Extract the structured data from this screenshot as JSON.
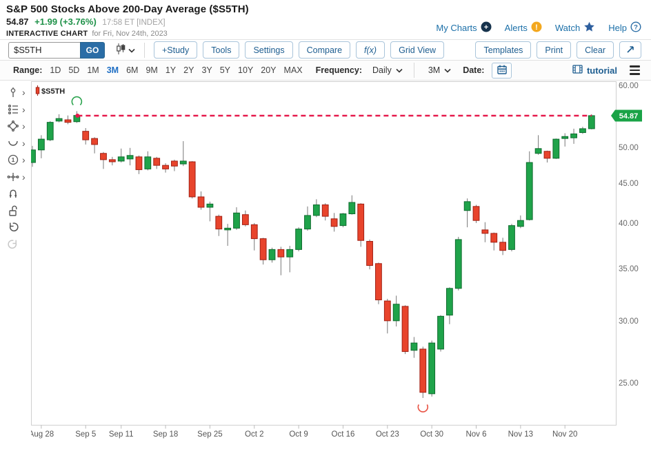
{
  "header": {
    "title": "S&P 500 Stocks Above 200-Day Average ($S5TH)",
    "price": "54.87",
    "change": "+1.99 (+3.76%)",
    "time": "17:58 ET [INDEX]",
    "chart_label": "INTERACTIVE CHART",
    "chart_date": "for Fri, Nov 24th, 2023",
    "links": [
      {
        "label": "My Charts",
        "icon": "plus-circle"
      },
      {
        "label": "Alerts",
        "icon": "alert-circle"
      },
      {
        "label": "Watch",
        "icon": "star"
      },
      {
        "label": "Help",
        "icon": "question-circle"
      }
    ]
  },
  "icons": {
    "plus": "+",
    "exclamation": "!",
    "question": "?",
    "one": "1"
  },
  "toolbar": {
    "symbol_value": "$S5TH",
    "go_label": "GO",
    "buttons_left": [
      "+Study",
      "Tools",
      "Settings",
      "Compare",
      "f(x)",
      "Grid View"
    ],
    "buttons_right": [
      "Templates",
      "Print",
      "Clear"
    ]
  },
  "range_bar": {
    "range_label": "Range:",
    "ranges": [
      "1D",
      "5D",
      "1M",
      "3M",
      "6M",
      "9M",
      "1Y",
      "2Y",
      "3Y",
      "5Y",
      "10Y",
      "20Y",
      "MAX"
    ],
    "selected_range": "3M",
    "frequency_label": "Frequency:",
    "frequency_value": "Daily",
    "period_value": "3M",
    "date_label": "Date:",
    "tutorial_label": "tutorial"
  },
  "sidebar_tools": [
    "annotation-tool",
    "trendlines-tool",
    "shapes-tool",
    "arc-tool",
    "text-note-tool",
    "measure-tool",
    "magnet-tool",
    "lock-tool",
    "undo-button",
    "redo-button"
  ],
  "colors": {
    "up": "#1fa34a",
    "up_border": "#0f6b2e",
    "down": "#e8442c",
    "down_border": "#a02014",
    "wick": "#777777",
    "hline": "#e6194b",
    "badge": "#1aa347",
    "annotation_green": "#2ba34e",
    "annotation_red": "#e95546"
  },
  "chart_data": {
    "type": "candlestick",
    "symbol": "$S5TH",
    "scale": "log",
    "grid": false,
    "ylim": [
      23,
      60
    ],
    "y_ticks": [
      60,
      50,
      45,
      40,
      35,
      30,
      25
    ],
    "y_tick_labels": [
      "60.00",
      "50.00",
      "45.00",
      "40.00",
      "35.00",
      "30.00",
      "25.00"
    ],
    "last_price": 54.87,
    "last_price_label": "54.87",
    "x_labels": [
      {
        "label": "Aug 28",
        "i": 1
      },
      {
        "label": "Sep 5",
        "i": 6
      },
      {
        "label": "Sep 11",
        "i": 10
      },
      {
        "label": "Sep 18",
        "i": 15
      },
      {
        "label": "Sep 25",
        "i": 20
      },
      {
        "label": "Oct 2",
        "i": 25
      },
      {
        "label": "Oct 9",
        "i": 30
      },
      {
        "label": "Oct 16",
        "i": 35
      },
      {
        "label": "Oct 23",
        "i": 40
      },
      {
        "label": "Oct 30",
        "i": 45
      },
      {
        "label": "Nov 6",
        "i": 50
      },
      {
        "label": "Nov 13",
        "i": 55
      },
      {
        "label": "Nov 20",
        "i": 60
      }
    ],
    "candles_ohlc": [
      [
        47.8,
        50.2,
        47.2,
        49.6
      ],
      [
        49.6,
        51.8,
        48.4,
        51.2
      ],
      [
        51.1,
        54.0,
        50.9,
        53.8
      ],
      [
        54.0,
        55.1,
        53.8,
        54.4
      ],
      [
        54.2,
        54.9,
        53.5,
        53.8
      ],
      [
        53.9,
        55.6,
        53.7,
        54.9
      ],
      [
        52.4,
        52.9,
        50.4,
        51.1
      ],
      [
        51.3,
        51.5,
        49.1,
        50.4
      ],
      [
        49.1,
        49.3,
        46.9,
        48.2
      ],
      [
        48.2,
        48.6,
        47.4,
        47.9
      ],
      [
        48.0,
        49.8,
        47.8,
        48.6
      ],
      [
        48.3,
        49.9,
        47.4,
        48.8
      ],
      [
        48.6,
        48.8,
        46.2,
        46.8
      ],
      [
        46.9,
        49.4,
        46.7,
        48.6
      ],
      [
        48.4,
        48.6,
        46.9,
        47.4
      ],
      [
        47.4,
        47.7,
        46.4,
        46.9
      ],
      [
        48.0,
        48.2,
        46.6,
        47.3
      ],
      [
        47.6,
        50.9,
        47.3,
        48.0
      ],
      [
        47.9,
        48.0,
        43.0,
        43.2
      ],
      [
        43.2,
        43.9,
        41.6,
        41.9
      ],
      [
        41.9,
        42.6,
        40.2,
        42.3
      ],
      [
        40.8,
        41.0,
        38.5,
        39.3
      ],
      [
        39.2,
        39.9,
        37.4,
        39.4
      ],
      [
        39.4,
        41.9,
        39.2,
        41.2
      ],
      [
        41.0,
        41.5,
        39.6,
        39.8
      ],
      [
        39.8,
        40.0,
        36.9,
        38.2
      ],
      [
        38.2,
        38.3,
        35.4,
        35.9
      ],
      [
        35.9,
        37.2,
        35.6,
        37.0
      ],
      [
        37.0,
        37.3,
        34.3,
        36.2
      ],
      [
        36.2,
        37.4,
        34.6,
        37.0
      ],
      [
        37.0,
        39.5,
        36.8,
        39.3
      ],
      [
        39.3,
        42.0,
        39.1,
        40.9
      ],
      [
        40.9,
        42.9,
        40.7,
        42.2
      ],
      [
        42.2,
        42.4,
        40.3,
        40.8
      ],
      [
        40.5,
        41.2,
        39.0,
        39.6
      ],
      [
        39.7,
        41.2,
        39.5,
        41.1
      ],
      [
        41.1,
        43.4,
        41.0,
        42.5
      ],
      [
        42.3,
        42.4,
        37.3,
        38.0
      ],
      [
        37.9,
        38.1,
        34.9,
        35.3
      ],
      [
        35.5,
        35.6,
        31.5,
        31.9
      ],
      [
        31.8,
        32.0,
        28.9,
        30.0
      ],
      [
        30.0,
        32.3,
        29.5,
        31.5
      ],
      [
        31.3,
        31.4,
        27.2,
        27.4
      ],
      [
        27.5,
        28.6,
        26.9,
        28.1
      ],
      [
        27.6,
        27.8,
        23.9,
        24.3
      ],
      [
        24.2,
        28.3,
        24.0,
        28.1
      ],
      [
        27.6,
        30.5,
        27.4,
        30.4
      ],
      [
        30.5,
        33.1,
        29.7,
        33.0
      ],
      [
        33.0,
        38.4,
        32.8,
        38.1
      ],
      [
        41.5,
        43.0,
        39.5,
        42.6
      ],
      [
        42.0,
        42.2,
        40.0,
        40.3
      ],
      [
        39.2,
        40.1,
        37.8,
        38.8
      ],
      [
        38.8,
        38.9,
        36.9,
        37.8
      ],
      [
        37.8,
        38.3,
        36.4,
        36.9
      ],
      [
        37.0,
        39.9,
        36.8,
        39.7
      ],
      [
        39.6,
        40.9,
        39.4,
        40.3
      ],
      [
        40.4,
        49.4,
        40.3,
        47.8
      ],
      [
        49.1,
        51.8,
        48.9,
        49.8
      ],
      [
        49.4,
        49.5,
        47.8,
        48.4
      ],
      [
        48.4,
        51.3,
        48.3,
        51.2
      ],
      [
        51.3,
        52.1,
        50.1,
        51.6
      ],
      [
        51.4,
        52.8,
        50.5,
        52.0
      ],
      [
        52.2,
        53.1,
        52.0,
        52.8
      ],
      [
        52.8,
        55.1,
        52.7,
        54.87
      ]
    ],
    "hline": {
      "value": 54.87,
      "start_index": 5
    },
    "annotations": [
      {
        "type": "dot",
        "index": 5,
        "value": 54.87
      },
      {
        "type": "arc-open-bottom",
        "index": 5,
        "value": 57.2
      },
      {
        "type": "arc-open-top",
        "index": 44,
        "value": 23.3
      }
    ]
  }
}
